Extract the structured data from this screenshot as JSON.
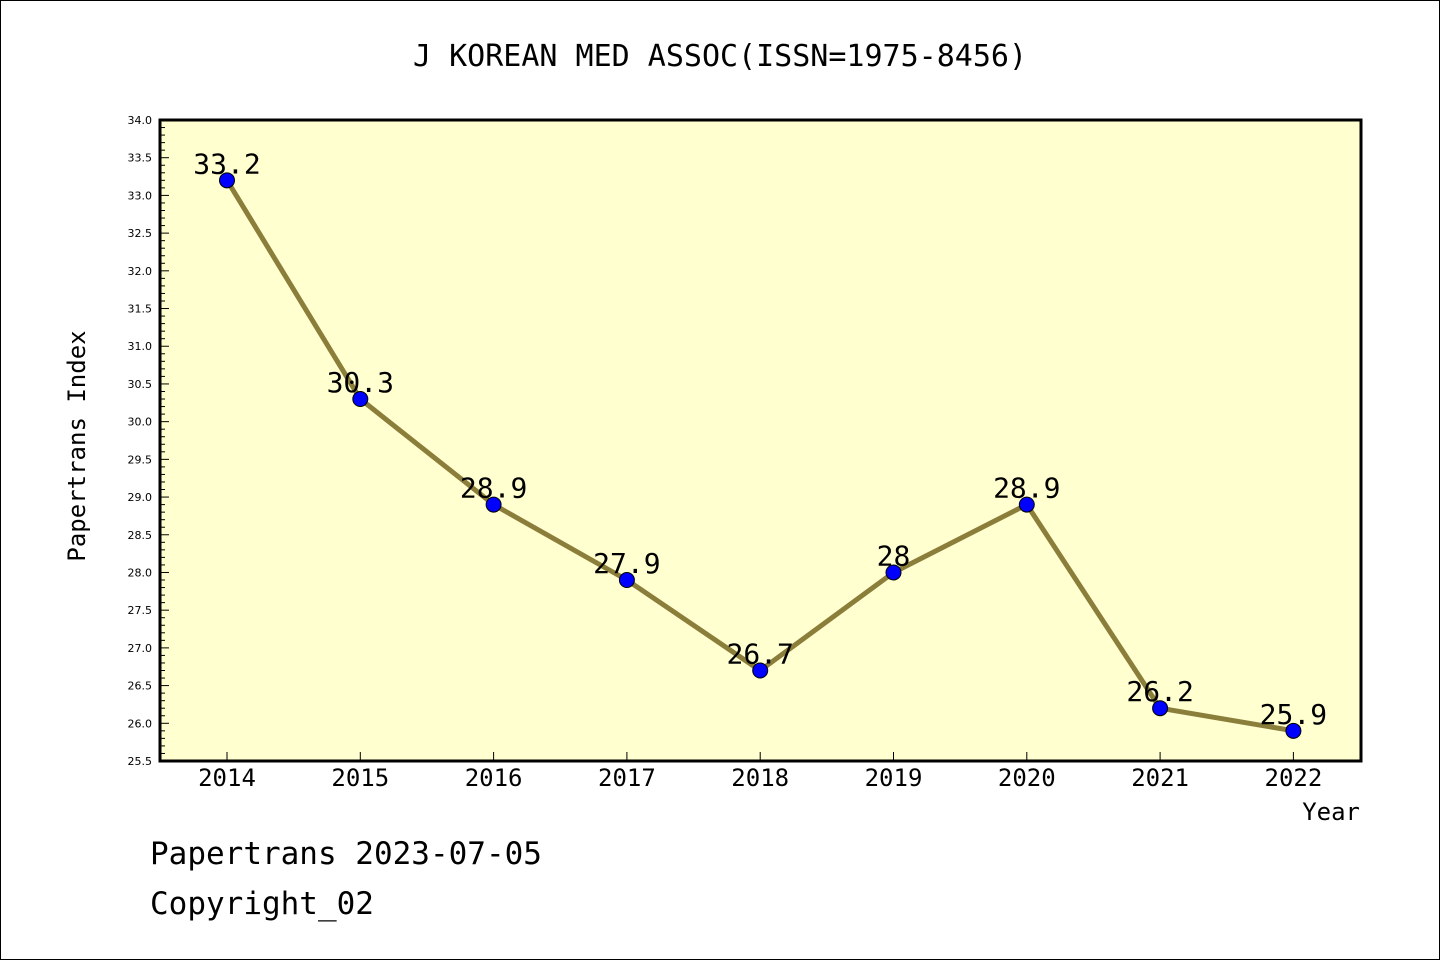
{
  "chart_data": {
    "type": "line",
    "title": "J KOREAN MED ASSOC(ISSN=1975-8456)",
    "xlabel": "Year",
    "ylabel": "Papertrans Index",
    "categories": [
      "2014",
      "2015",
      "2016",
      "2017",
      "2018",
      "2019",
      "2020",
      "2021",
      "2022"
    ],
    "series": [
      {
        "values": [
          33.2,
          30.3,
          28.9,
          27.9,
          26.7,
          28.0,
          28.9,
          26.2,
          25.9
        ],
        "labels": [
          "33.2",
          "30.3",
          "28.9",
          "27.9",
          "26.7",
          "28",
          "28.9",
          "26.2",
          "25.9"
        ]
      }
    ],
    "ylim": [
      25.5,
      34.0
    ],
    "yticks": [
      "25.5",
      "26.0",
      "26.5",
      "27.0",
      "27.5",
      "28.0",
      "28.5",
      "29.0",
      "29.5",
      "30.0",
      "30.5",
      "31.0",
      "31.5",
      "32.0",
      "32.5",
      "33.0",
      "33.5",
      "34.0"
    ],
    "grid": false,
    "colors": {
      "plot_background": "#ffffd0",
      "line": "#8b7d3a",
      "marker": "#0000ff"
    }
  },
  "footer": {
    "date_line": "Papertrans 2023-07-05",
    "copyright": "Copyright_02"
  }
}
